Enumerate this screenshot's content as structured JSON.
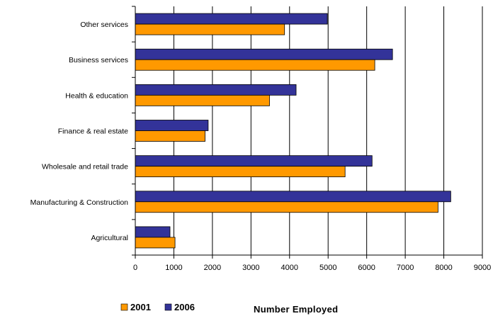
{
  "chart_data": {
    "type": "bar",
    "orientation": "horizontal",
    "categories": [
      "Other services",
      "Business services",
      "Health & education",
      "Finance & real estate",
      "Wholesale and retail trade",
      "Manufacturing & Construction",
      "Agricultural"
    ],
    "series": [
      {
        "name": "2001",
        "color": "#FF9900",
        "values": [
          3870,
          6210,
          3480,
          1810,
          5440,
          7850,
          1030
        ]
      },
      {
        "name": "2006",
        "color": "#333399",
        "values": [
          4980,
          6670,
          4170,
          1890,
          6140,
          8180,
          900
        ]
      }
    ],
    "xlabel": "Number Employed",
    "xlim": [
      0,
      9000
    ],
    "xticks": [
      "0",
      "1000",
      "2000",
      "3000",
      "4000",
      "5000",
      "6000",
      "7000",
      "8000",
      "9000"
    ],
    "grid": "vertical",
    "legend_position": "bottom-left"
  }
}
